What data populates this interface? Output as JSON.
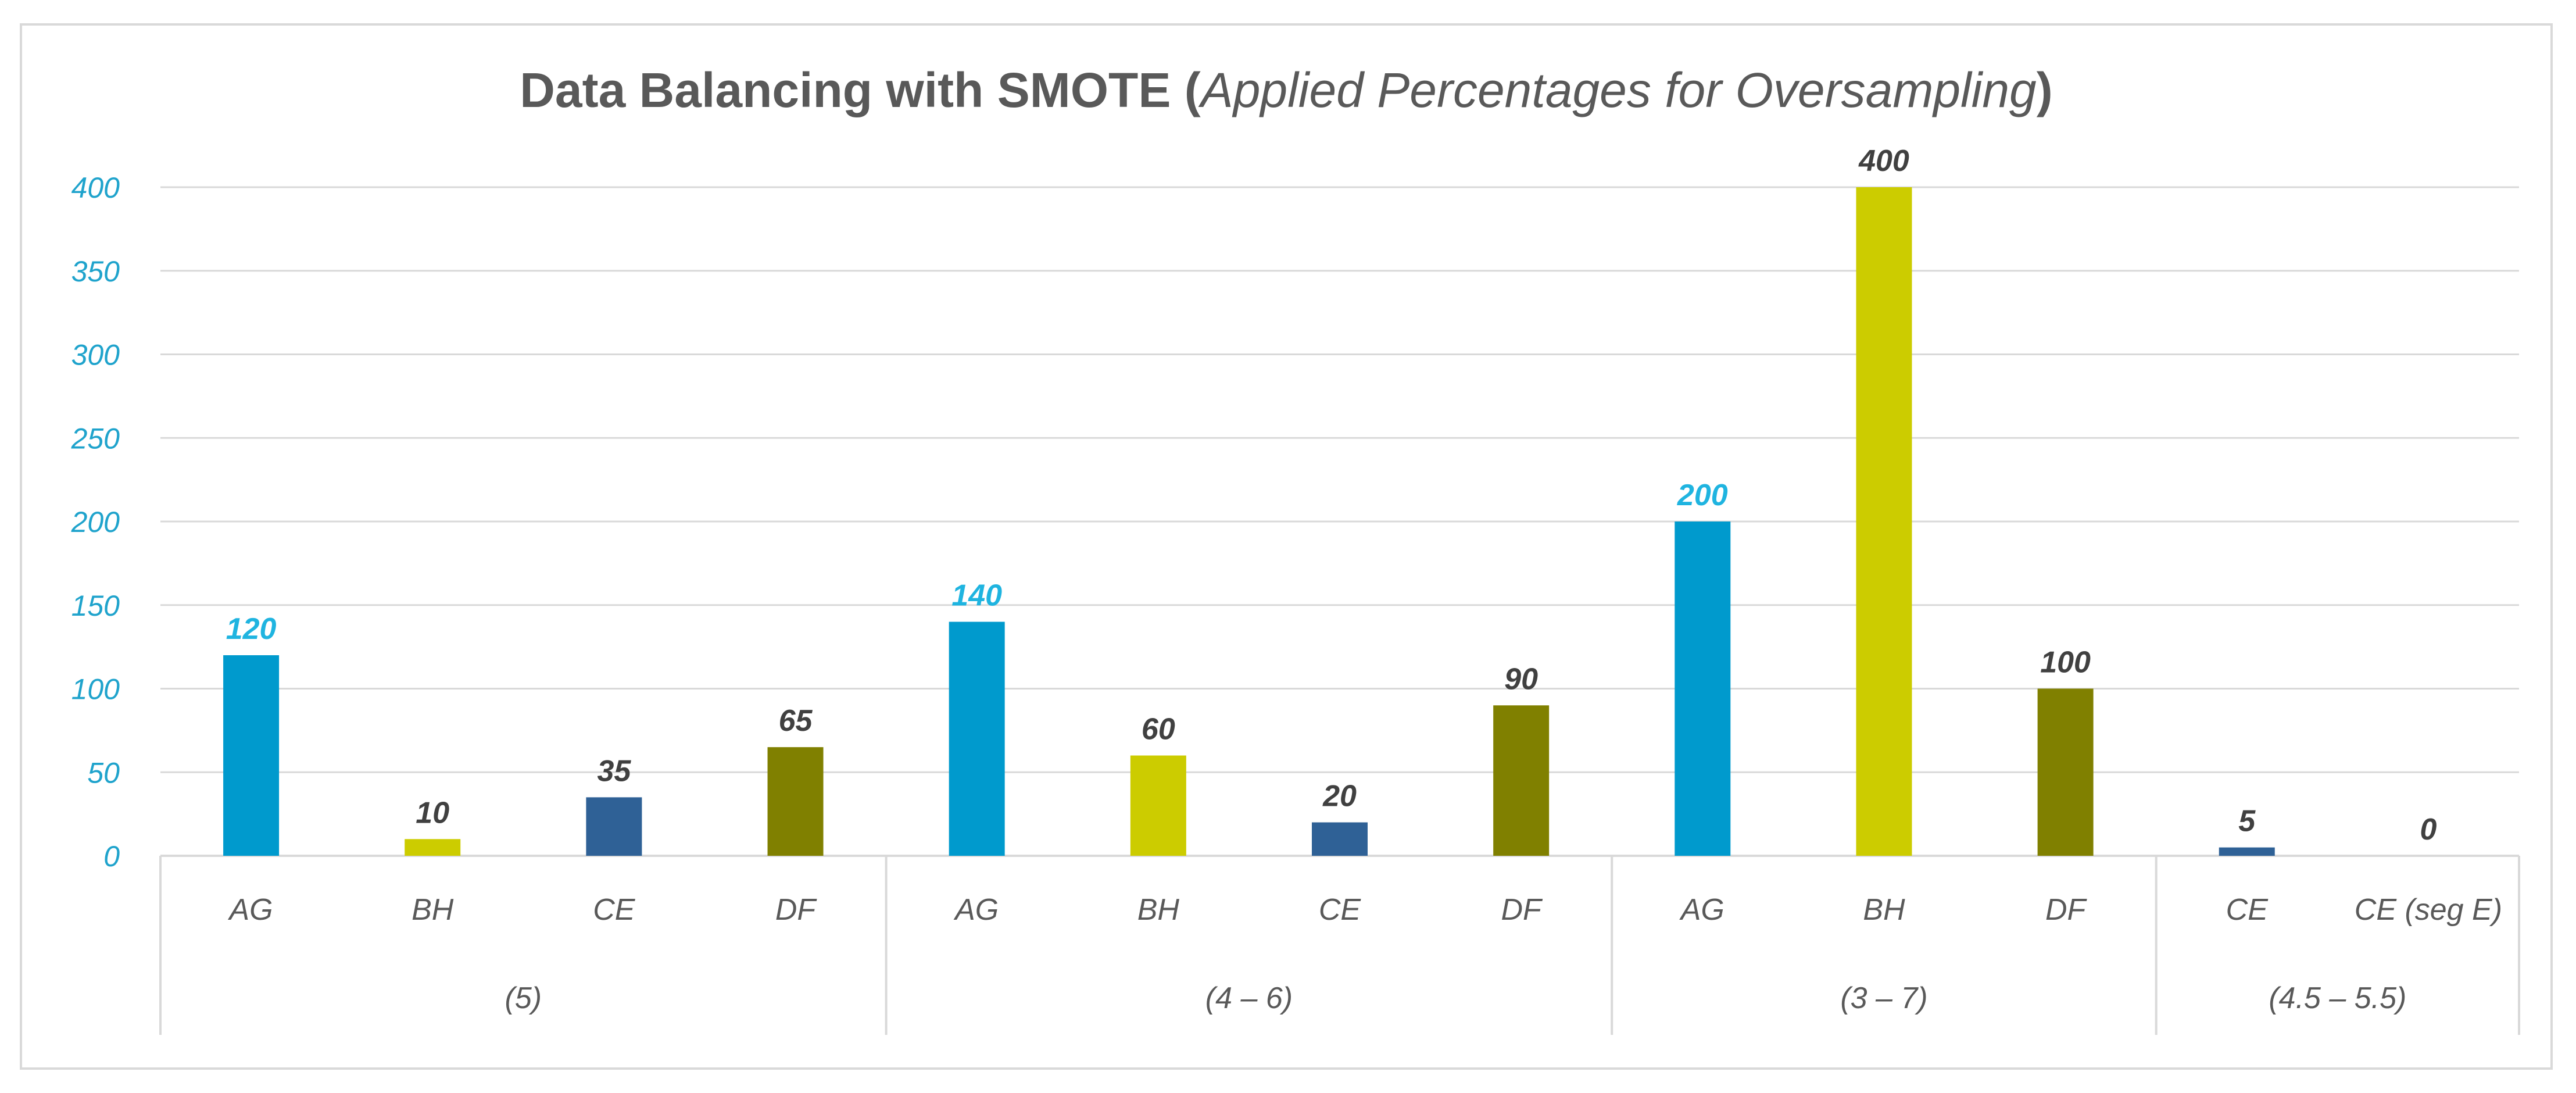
{
  "chart_data": {
    "type": "bar",
    "title": "Data Balancing with SMOTE",
    "subtitle": "Applied Percentages for Oversampling",
    "xlabel": "",
    "ylabel": "",
    "ylim": [
      0,
      400
    ],
    "yticks": [
      0,
      50,
      100,
      150,
      200,
      250,
      300,
      350,
      400
    ],
    "grid": true,
    "groups": [
      {
        "label": "(5)",
        "bars": [
          {
            "category": "AG",
            "value": 120,
            "color": "#009acd",
            "label_color": "#1fb4e0"
          },
          {
            "category": "BH",
            "value": 10,
            "color": "#cccc00",
            "label_color": "#404040"
          },
          {
            "category": "CE",
            "value": 35,
            "color": "#2f6196",
            "label_color": "#404040"
          },
          {
            "category": "DF",
            "value": 65,
            "color": "#808000",
            "label_color": "#404040"
          }
        ]
      },
      {
        "label": "(4 – 6)",
        "bars": [
          {
            "category": "AG",
            "value": 140,
            "color": "#009acd",
            "label_color": "#1fb4e0"
          },
          {
            "category": "BH",
            "value": 60,
            "color": "#cccc00",
            "label_color": "#404040"
          },
          {
            "category": "CE",
            "value": 20,
            "color": "#2f6196",
            "label_color": "#404040"
          },
          {
            "category": "DF",
            "value": 90,
            "color": "#808000",
            "label_color": "#404040"
          }
        ]
      },
      {
        "label": "(3 – 7)",
        "bars": [
          {
            "category": "AG",
            "value": 200,
            "color": "#009acd",
            "label_color": "#1fb4e0"
          },
          {
            "category": "BH",
            "value": 400,
            "color": "#cccc00",
            "label_color": "#404040"
          },
          {
            "category": "DF",
            "value": 100,
            "color": "#808000",
            "label_color": "#404040"
          }
        ]
      },
      {
        "label": "(4.5 – 5.5)",
        "bars": [
          {
            "category": "CE",
            "value": 5,
            "color": "#2f6196",
            "label_color": "#404040"
          },
          {
            "category": "CE  (seg E)",
            "value": 0,
            "color": "#2f6196",
            "label_color": "#404040"
          }
        ]
      }
    ]
  }
}
